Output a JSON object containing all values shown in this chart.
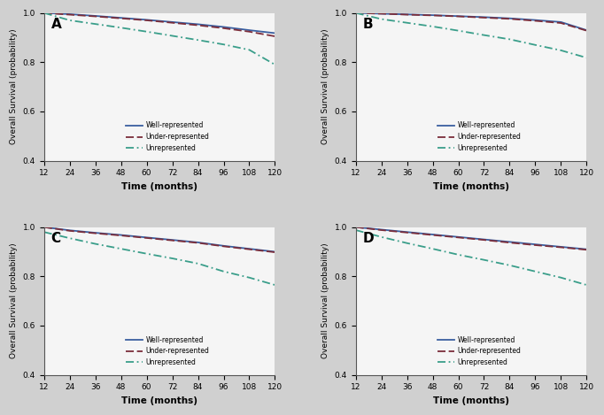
{
  "panels": [
    "A",
    "B",
    "C",
    "D"
  ],
  "time": [
    12,
    24,
    36,
    48,
    60,
    72,
    84,
    96,
    108,
    120
  ],
  "curves": {
    "A": {
      "well": [
        1.0,
        0.995,
        0.988,
        0.98,
        0.972,
        0.963,
        0.954,
        0.943,
        0.93,
        0.918
      ],
      "under": [
        1.0,
        0.993,
        0.986,
        0.978,
        0.97,
        0.96,
        0.95,
        0.938,
        0.924,
        0.905
      ],
      "unrep": [
        1.0,
        0.97,
        0.955,
        0.94,
        0.924,
        0.907,
        0.89,
        0.872,
        0.85,
        0.79
      ]
    },
    "B": {
      "well": [
        1.0,
        0.997,
        0.994,
        0.991,
        0.987,
        0.983,
        0.978,
        0.971,
        0.963,
        0.93
      ],
      "under": [
        1.0,
        0.997,
        0.993,
        0.99,
        0.986,
        0.981,
        0.976,
        0.968,
        0.959,
        0.928
      ],
      "unrep": [
        1.0,
        0.975,
        0.96,
        0.945,
        0.928,
        0.91,
        0.893,
        0.87,
        0.848,
        0.818
      ]
    },
    "C": {
      "well": [
        1.0,
        0.987,
        0.977,
        0.968,
        0.958,
        0.948,
        0.938,
        0.924,
        0.912,
        0.9
      ],
      "under": [
        1.0,
        0.985,
        0.975,
        0.966,
        0.956,
        0.946,
        0.936,
        0.922,
        0.91,
        0.898
      ],
      "unrep": [
        0.98,
        0.955,
        0.932,
        0.912,
        0.892,
        0.873,
        0.852,
        0.82,
        0.795,
        0.765
      ]
    },
    "D": {
      "well": [
        1.0,
        0.99,
        0.98,
        0.97,
        0.96,
        0.95,
        0.94,
        0.93,
        0.92,
        0.91
      ],
      "under": [
        1.0,
        0.988,
        0.978,
        0.968,
        0.958,
        0.948,
        0.937,
        0.927,
        0.918,
        0.908
      ],
      "unrep": [
        0.988,
        0.96,
        0.935,
        0.912,
        0.888,
        0.867,
        0.845,
        0.82,
        0.795,
        0.765
      ]
    }
  },
  "well_color": "#3a5fa0",
  "under_color": "#7b2d3a",
  "unrep_color": "#3a9e8a",
  "ylim": [
    0.4,
    1.0
  ],
  "yticks": [
    0.4,
    0.6,
    0.8,
    1.0
  ],
  "xticks": [
    12,
    24,
    36,
    48,
    60,
    72,
    84,
    96,
    108,
    120
  ],
  "xlabel": "Time (months)",
  "ylabel": "Overall Survival (probability)",
  "legend_labels": [
    "Well-represented",
    "Under-represented",
    "Unrepresented"
  ],
  "bg_color": "#f5f5f5",
  "outer_bg": "#d0d0d0"
}
